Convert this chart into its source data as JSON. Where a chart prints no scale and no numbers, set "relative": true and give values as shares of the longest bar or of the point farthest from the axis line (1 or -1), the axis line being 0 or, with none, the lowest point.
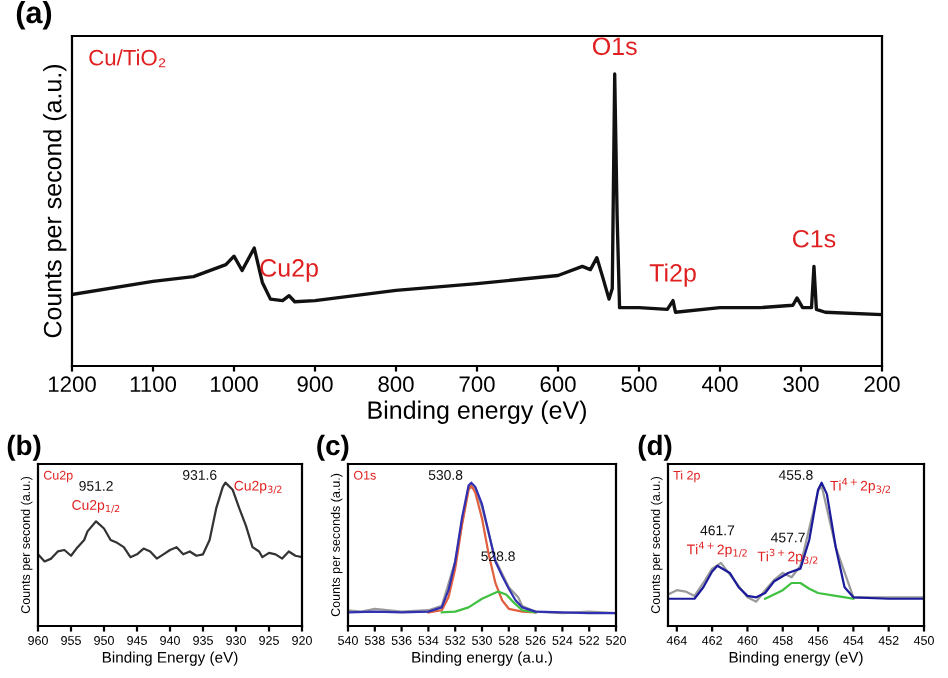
{
  "chart_data": [
    {
      "type": "line",
      "title": "(a)",
      "xlabel": "Binding energy (eV)",
      "ylabel": "Counts per second (a.u.)",
      "relative": true,
      "tick_labels": "x",
      "xlim": [
        1200,
        200
      ],
      "xticks": [
        1200,
        1100,
        1000,
        900,
        800,
        700,
        600,
        500,
        400,
        300,
        200
      ],
      "annotations": [
        "Cu/TiO₂",
        {
          "text": "O1s",
          "x": 530,
          "y": 1.0
        },
        {
          "text": "Cu2p",
          "x": 932,
          "y": 0.241
        },
        {
          "text": "Ti2p",
          "x": 458,
          "y": 0.224
        },
        {
          "text": "C1s",
          "x": 284,
          "y": 0.341
        }
      ],
      "series": [
        {
          "color": "#111111",
          "x": [
            1200,
            1100,
            1050,
            1010,
            1000,
            990,
            975,
            965,
            955,
            940,
            932,
            925,
            900,
            800,
            700,
            600,
            570,
            560,
            552,
            545,
            537,
            533,
            530,
            527,
            524,
            500,
            465,
            458,
            455,
            400,
            350,
            310,
            305,
            298,
            287,
            284,
            281,
            270,
            200
          ],
          "values": [
            0.245,
            0.29,
            0.306,
            0.347,
            0.376,
            0.327,
            0.404,
            0.286,
            0.229,
            0.224,
            0.241,
            0.22,
            0.224,
            0.259,
            0.282,
            0.31,
            0.341,
            0.33,
            0.371,
            0.306,
            0.229,
            0.265,
            1.0,
            0.51,
            0.2,
            0.2,
            0.194,
            0.224,
            0.184,
            0.2,
            0.2,
            0.208,
            0.233,
            0.2,
            0.2,
            0.341,
            0.194,
            0.184,
            0.176
          ]
        }
      ]
    },
    {
      "type": "line",
      "title": "(b)",
      "xlabel": "Binding Energy (eV)",
      "ylabel": "Counts per second (a.u.)",
      "relative": true,
      "tick_labels": "x",
      "xlim": [
        960,
        920
      ],
      "xticks": [
        960,
        955,
        950,
        945,
        940,
        935,
        930,
        925,
        920
      ],
      "annotations": [
        "Cu2p",
        {
          "text": "951.2",
          "x": 951.2,
          "y": 0.73
        },
        {
          "text": "Cu2p$_{1/2}$",
          "x": 951.2,
          "y": 0.73
        },
        {
          "text": "931.6",
          "x": 931.6,
          "y": 1.0
        },
        {
          "text": "Cu2p$_{3/2}$",
          "x": 931.6,
          "y": 1.0
        }
      ],
      "series": [
        {
          "color": "#333333",
          "x": [
            960,
            959,
            958,
            957,
            956,
            955,
            954,
            953,
            952.5,
            951.2,
            950,
            949,
            948,
            947,
            946,
            945,
            944,
            943,
            942,
            941,
            940,
            939,
            938,
            937,
            936,
            935,
            934,
            933,
            932,
            931.6,
            930.5,
            929.5,
            928.5,
            927.5,
            926.5,
            926,
            925,
            924,
            923,
            922,
            921,
            920
          ],
          "values": [
            0.5,
            0.45,
            0.47,
            0.52,
            0.53,
            0.49,
            0.55,
            0.6,
            0.66,
            0.73,
            0.68,
            0.6,
            0.58,
            0.55,
            0.48,
            0.5,
            0.54,
            0.52,
            0.47,
            0.5,
            0.53,
            0.55,
            0.5,
            0.52,
            0.49,
            0.5,
            0.6,
            0.82,
            0.97,
            1.0,
            0.95,
            0.82,
            0.7,
            0.55,
            0.52,
            0.48,
            0.51,
            0.5,
            0.47,
            0.52,
            0.49,
            0.48
          ]
        }
      ]
    },
    {
      "type": "line",
      "title": "(c)",
      "xlabel": "Binding energy (a.u.)",
      "ylabel": "Counts per seconds (a.u.)",
      "relative": true,
      "tick_labels": "x",
      "xlim": [
        540,
        520
      ],
      "xticks": [
        540,
        538,
        536,
        534,
        532,
        530,
        528,
        526,
        524,
        522,
        520
      ],
      "annotations": [
        "O1s",
        {
          "text": "530.8",
          "x": 530.8,
          "y": 1.0
        },
        {
          "text": "528.8",
          "x": 528.8,
          "y": 0.24
        }
      ],
      "series": [
        {
          "color": "#9a9a9a",
          "x": [
            540,
            539,
            538,
            536,
            534,
            533,
            532,
            531,
            530.5,
            530,
            529,
            528,
            527.3,
            527,
            526,
            524,
            522,
            520
          ],
          "values": [
            0.11,
            0.1,
            0.12,
            0.1,
            0.11,
            0.14,
            0.45,
            0.97,
            0.96,
            0.83,
            0.46,
            0.27,
            0.2,
            0.14,
            0.1,
            0.09,
            0.1,
            0.09
          ]
        },
        {
          "color": "#e06040",
          "x": [
            534,
            533,
            532.5,
            532,
            531.5,
            531,
            530.8,
            530.5,
            530,
            529.5,
            529,
            528.5,
            528,
            527,
            526
          ],
          "values": [
            0.095,
            0.11,
            0.2,
            0.4,
            0.7,
            0.95,
            0.98,
            0.93,
            0.75,
            0.5,
            0.3,
            0.18,
            0.12,
            0.1,
            0.095
          ]
        },
        {
          "color": "#40c040",
          "x": [
            533,
            532,
            531,
            530,
            528.8,
            528.2,
            527.7,
            527,
            526
          ],
          "values": [
            0.095,
            0.1,
            0.13,
            0.19,
            0.24,
            0.22,
            0.17,
            0.11,
            0.095
          ]
        },
        {
          "color": "#3030b0",
          "x": [
            540,
            538,
            536,
            534,
            533,
            532.5,
            532,
            531.5,
            531,
            530.8,
            530.5,
            530,
            529.5,
            529,
            528.5,
            528,
            527.5,
            527,
            526,
            524,
            522,
            520
          ],
          "values": [
            0.095,
            0.1,
            0.095,
            0.1,
            0.13,
            0.25,
            0.45,
            0.75,
            0.98,
            1.0,
            0.97,
            0.85,
            0.65,
            0.45,
            0.35,
            0.26,
            0.18,
            0.13,
            0.1,
            0.095,
            0.09,
            0.09
          ]
        }
      ]
    },
    {
      "type": "line",
      "title": "(d)",
      "xlabel": "Binding energy (eV)",
      "ylabel": "Counts per second (a.u.)",
      "relative": true,
      "tick_labels": "x",
      "xlim": [
        464.5,
        450
      ],
      "xticks": [
        464,
        462,
        460,
        458,
        456,
        454,
        452,
        450
      ],
      "annotations": [
        "Ti 2p",
        {
          "text": "455.8",
          "x": 455.8,
          "y": 1.0
        },
        {
          "text": "Ti$^{4+}$2p$_{3/2}$",
          "x": 455.8,
          "y": 1.0
        },
        {
          "text": "461.7",
          "x": 461.7,
          "y": 0.42
        },
        {
          "text": "Ti$^{4+}$2p$_{1/2}$",
          "x": 461.7,
          "y": 0.42
        },
        {
          "text": "457.7",
          "x": 457.7,
          "y": 0.37
        },
        {
          "text": "Ti$^{3+}$2p$_{3/2}$",
          "x": 457.7,
          "y": 0.37
        }
      ],
      "series": [
        {
          "color": "#9a9a9a",
          "x": [
            464.5,
            464,
            463.5,
            463,
            462.5,
            462,
            461.5,
            461,
            460,
            459.5,
            459,
            458.5,
            458,
            457.5,
            457,
            456,
            455.8,
            455,
            454,
            452,
            450
          ],
          "values": [
            0.22,
            0.25,
            0.24,
            0.21,
            0.3,
            0.4,
            0.44,
            0.36,
            0.2,
            0.17,
            0.25,
            0.32,
            0.37,
            0.34,
            0.42,
            0.94,
            0.98,
            0.55,
            0.2,
            0.2,
            0.2
          ]
        },
        {
          "color": "#40c040",
          "x": [
            459,
            458,
            457.5,
            457,
            456.5,
            456,
            455,
            454
          ],
          "values": [
            0.19,
            0.25,
            0.3,
            0.3,
            0.26,
            0.23,
            0.21,
            0.19
          ]
        },
        {
          "color": "#1a1a9a",
          "x": [
            464.5,
            463,
            462.5,
            462,
            461.7,
            461,
            460.5,
            460,
            459.5,
            459,
            458.5,
            457.7,
            457,
            456.5,
            456,
            455.8,
            455.5,
            455,
            454.5,
            454,
            452,
            450
          ],
          "values": [
            0.19,
            0.19,
            0.27,
            0.38,
            0.42,
            0.37,
            0.27,
            0.21,
            0.2,
            0.23,
            0.31,
            0.37,
            0.4,
            0.6,
            0.95,
            1.0,
            0.92,
            0.55,
            0.27,
            0.2,
            0.19,
            0.19
          ]
        }
      ]
    }
  ]
}
